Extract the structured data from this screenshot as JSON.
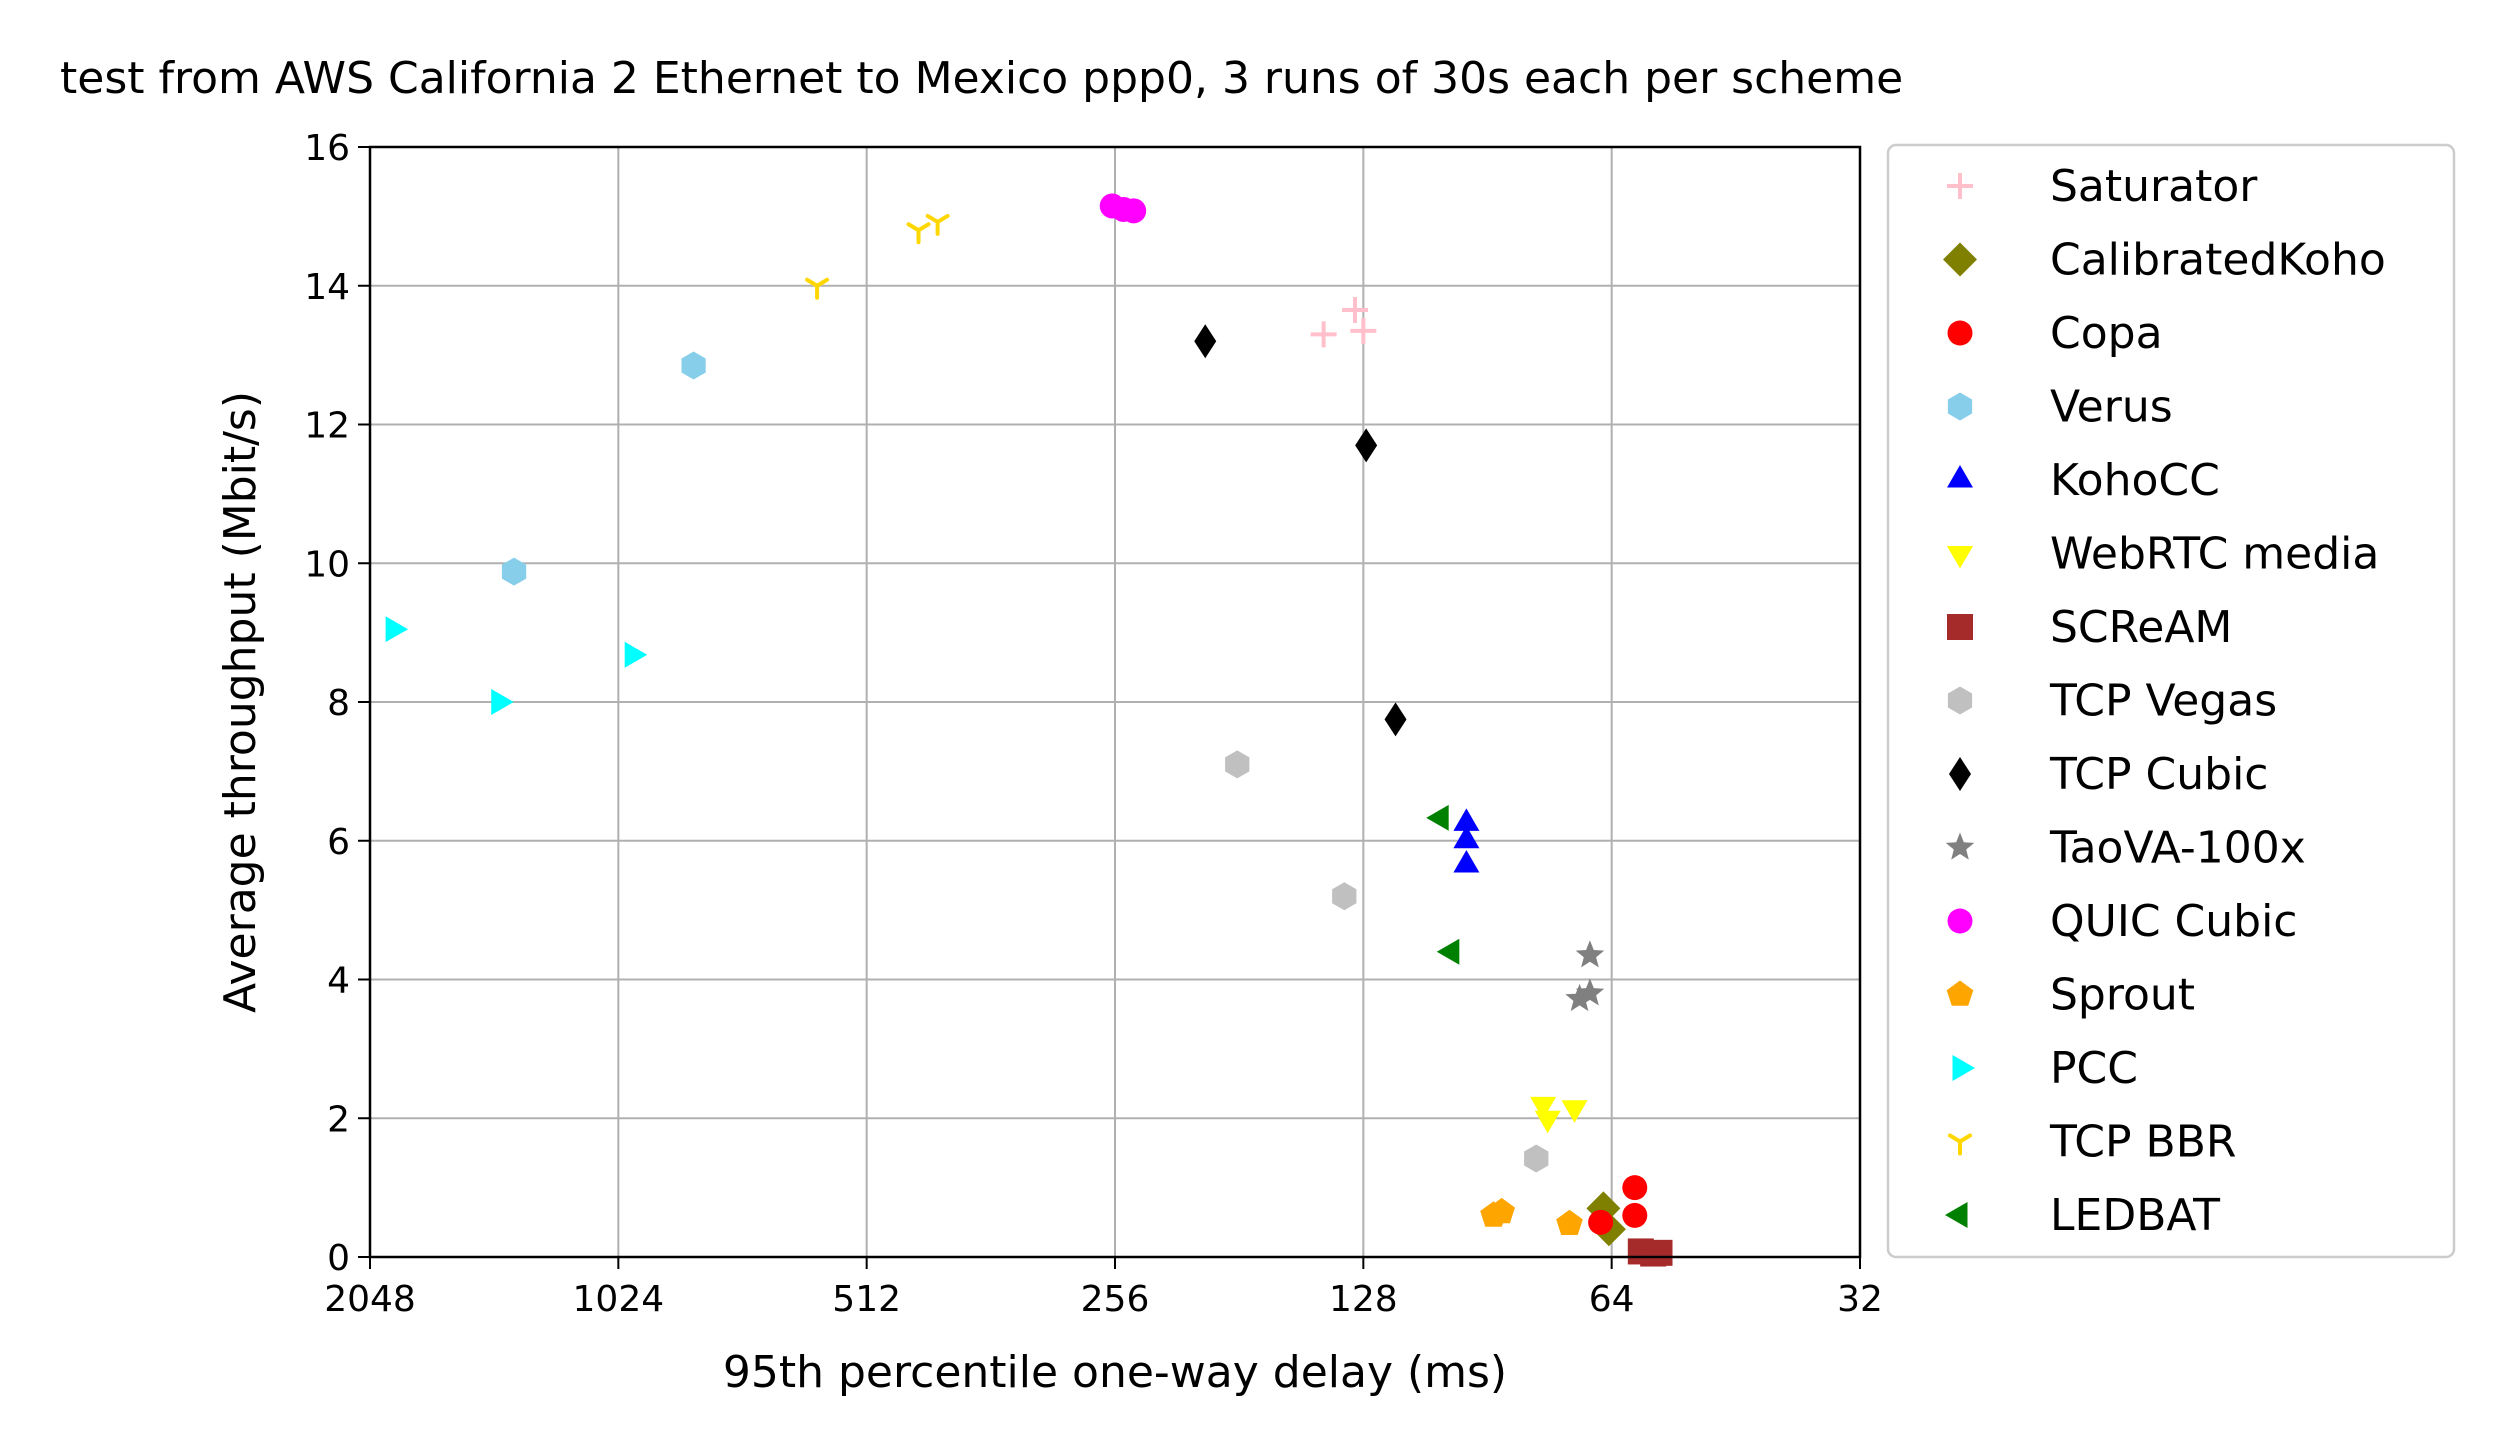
{
  "chart_data": {
    "type": "scatter",
    "title": "test from AWS California 2 Ethernet to Mexico ppp0, 3 runs of 30s each per scheme",
    "xlabel": "95th percentile one-way delay (ms)",
    "ylabel": "Average throughput (Mbit/s)",
    "x_scale": "log2",
    "x_inverted": true,
    "xlim": [
      2048,
      32
    ],
    "ylim": [
      0,
      16
    ],
    "xticks": [
      2048,
      1024,
      512,
      256,
      128,
      64,
      32
    ],
    "xtick_labels": [
      "2048",
      "1024",
      "512",
      "256",
      "128",
      "64",
      "32"
    ],
    "yticks": [
      0,
      2,
      4,
      6,
      8,
      10,
      12,
      14,
      16
    ],
    "ytick_labels": [
      "0",
      "2",
      "4",
      "6",
      "8",
      "10",
      "12",
      "14",
      "16"
    ],
    "grid": true,
    "legend_position": "outside-right",
    "series": [
      {
        "name": "Saturator",
        "marker": "plus",
        "color": "#ffc0cb",
        "points": [
          [
            143,
            13.3
          ],
          [
            131,
            13.65
          ],
          [
            128,
            13.35
          ]
        ]
      },
      {
        "name": "CalibratedKoho",
        "marker": "diamond",
        "color": "#808000",
        "points": [
          [
            64.5,
            0.4
          ],
          [
            65.5,
            0.7
          ]
        ]
      },
      {
        "name": "Copa",
        "marker": "circle",
        "color": "#ff0000",
        "points": [
          [
            60,
            1.0
          ],
          [
            60,
            0.6
          ],
          [
            66,
            0.5
          ]
        ]
      },
      {
        "name": "Verus",
        "marker": "hexagon",
        "color": "#87ceeb",
        "points": [
          [
            830,
            12.85
          ],
          [
            1370,
            9.88
          ]
        ]
      },
      {
        "name": "KohoCC",
        "marker": "triangle-up",
        "color": "#0000ff",
        "points": [
          [
            96,
            6.25
          ],
          [
            96,
            5.65
          ],
          [
            96,
            6.0
          ]
        ]
      },
      {
        "name": "WebRTC media",
        "marker": "triangle-down",
        "color": "#ffff00",
        "points": [
          [
            77.5,
            2.2
          ],
          [
            76.5,
            2.0
          ],
          [
            71,
            2.15
          ]
        ]
      },
      {
        "name": "SCReAM",
        "marker": "square",
        "color": "#a52a2a",
        "points": [
          [
            57,
            0.05
          ],
          [
            59,
            0.08
          ],
          [
            56,
            0.06
          ]
        ]
      },
      {
        "name": "TCP Vegas",
        "marker": "hexagon",
        "color": "#c0c0c0",
        "points": [
          [
            182,
            7.1
          ],
          [
            135,
            5.2
          ],
          [
            79,
            1.42
          ]
        ]
      },
      {
        "name": "TCP Cubic",
        "marker": "thin-diamond",
        "color": "#000000",
        "points": [
          [
            199,
            13.2
          ],
          [
            127,
            11.7
          ],
          [
            117,
            7.75
          ]
        ]
      },
      {
        "name": "TaoVA-100x",
        "marker": "star",
        "color": "#808080",
        "points": [
          [
            68,
            4.35
          ],
          [
            70,
            3.72
          ],
          [
            68,
            3.8
          ]
        ]
      },
      {
        "name": "QUIC Cubic",
        "marker": "circle",
        "color": "#ff00ff",
        "points": [
          [
            258,
            15.15
          ],
          [
            250,
            15.1
          ],
          [
            243,
            15.08
          ]
        ]
      },
      {
        "name": "Sprout",
        "marker": "pentagon",
        "color": "#ffa500",
        "points": [
          [
            89,
            0.6
          ],
          [
            87,
            0.65
          ],
          [
            72,
            0.48
          ]
        ]
      },
      {
        "name": "PCC",
        "marker": "triangle-right",
        "color": "#00ffff",
        "points": [
          [
            1920,
            9.05
          ],
          [
            1430,
            8.0
          ],
          [
            985,
            8.68
          ]
        ]
      },
      {
        "name": "TCP BBR",
        "marker": "tri-down",
        "color": "#ffd700",
        "points": [
          [
            588,
            14.0
          ],
          [
            443,
            14.8
          ],
          [
            420,
            14.92
          ]
        ]
      },
      {
        "name": "LEDBAT",
        "marker": "triangle-left",
        "color": "#008000",
        "points": [
          [
            103,
            6.33
          ],
          [
            100,
            4.4
          ]
        ]
      }
    ]
  }
}
